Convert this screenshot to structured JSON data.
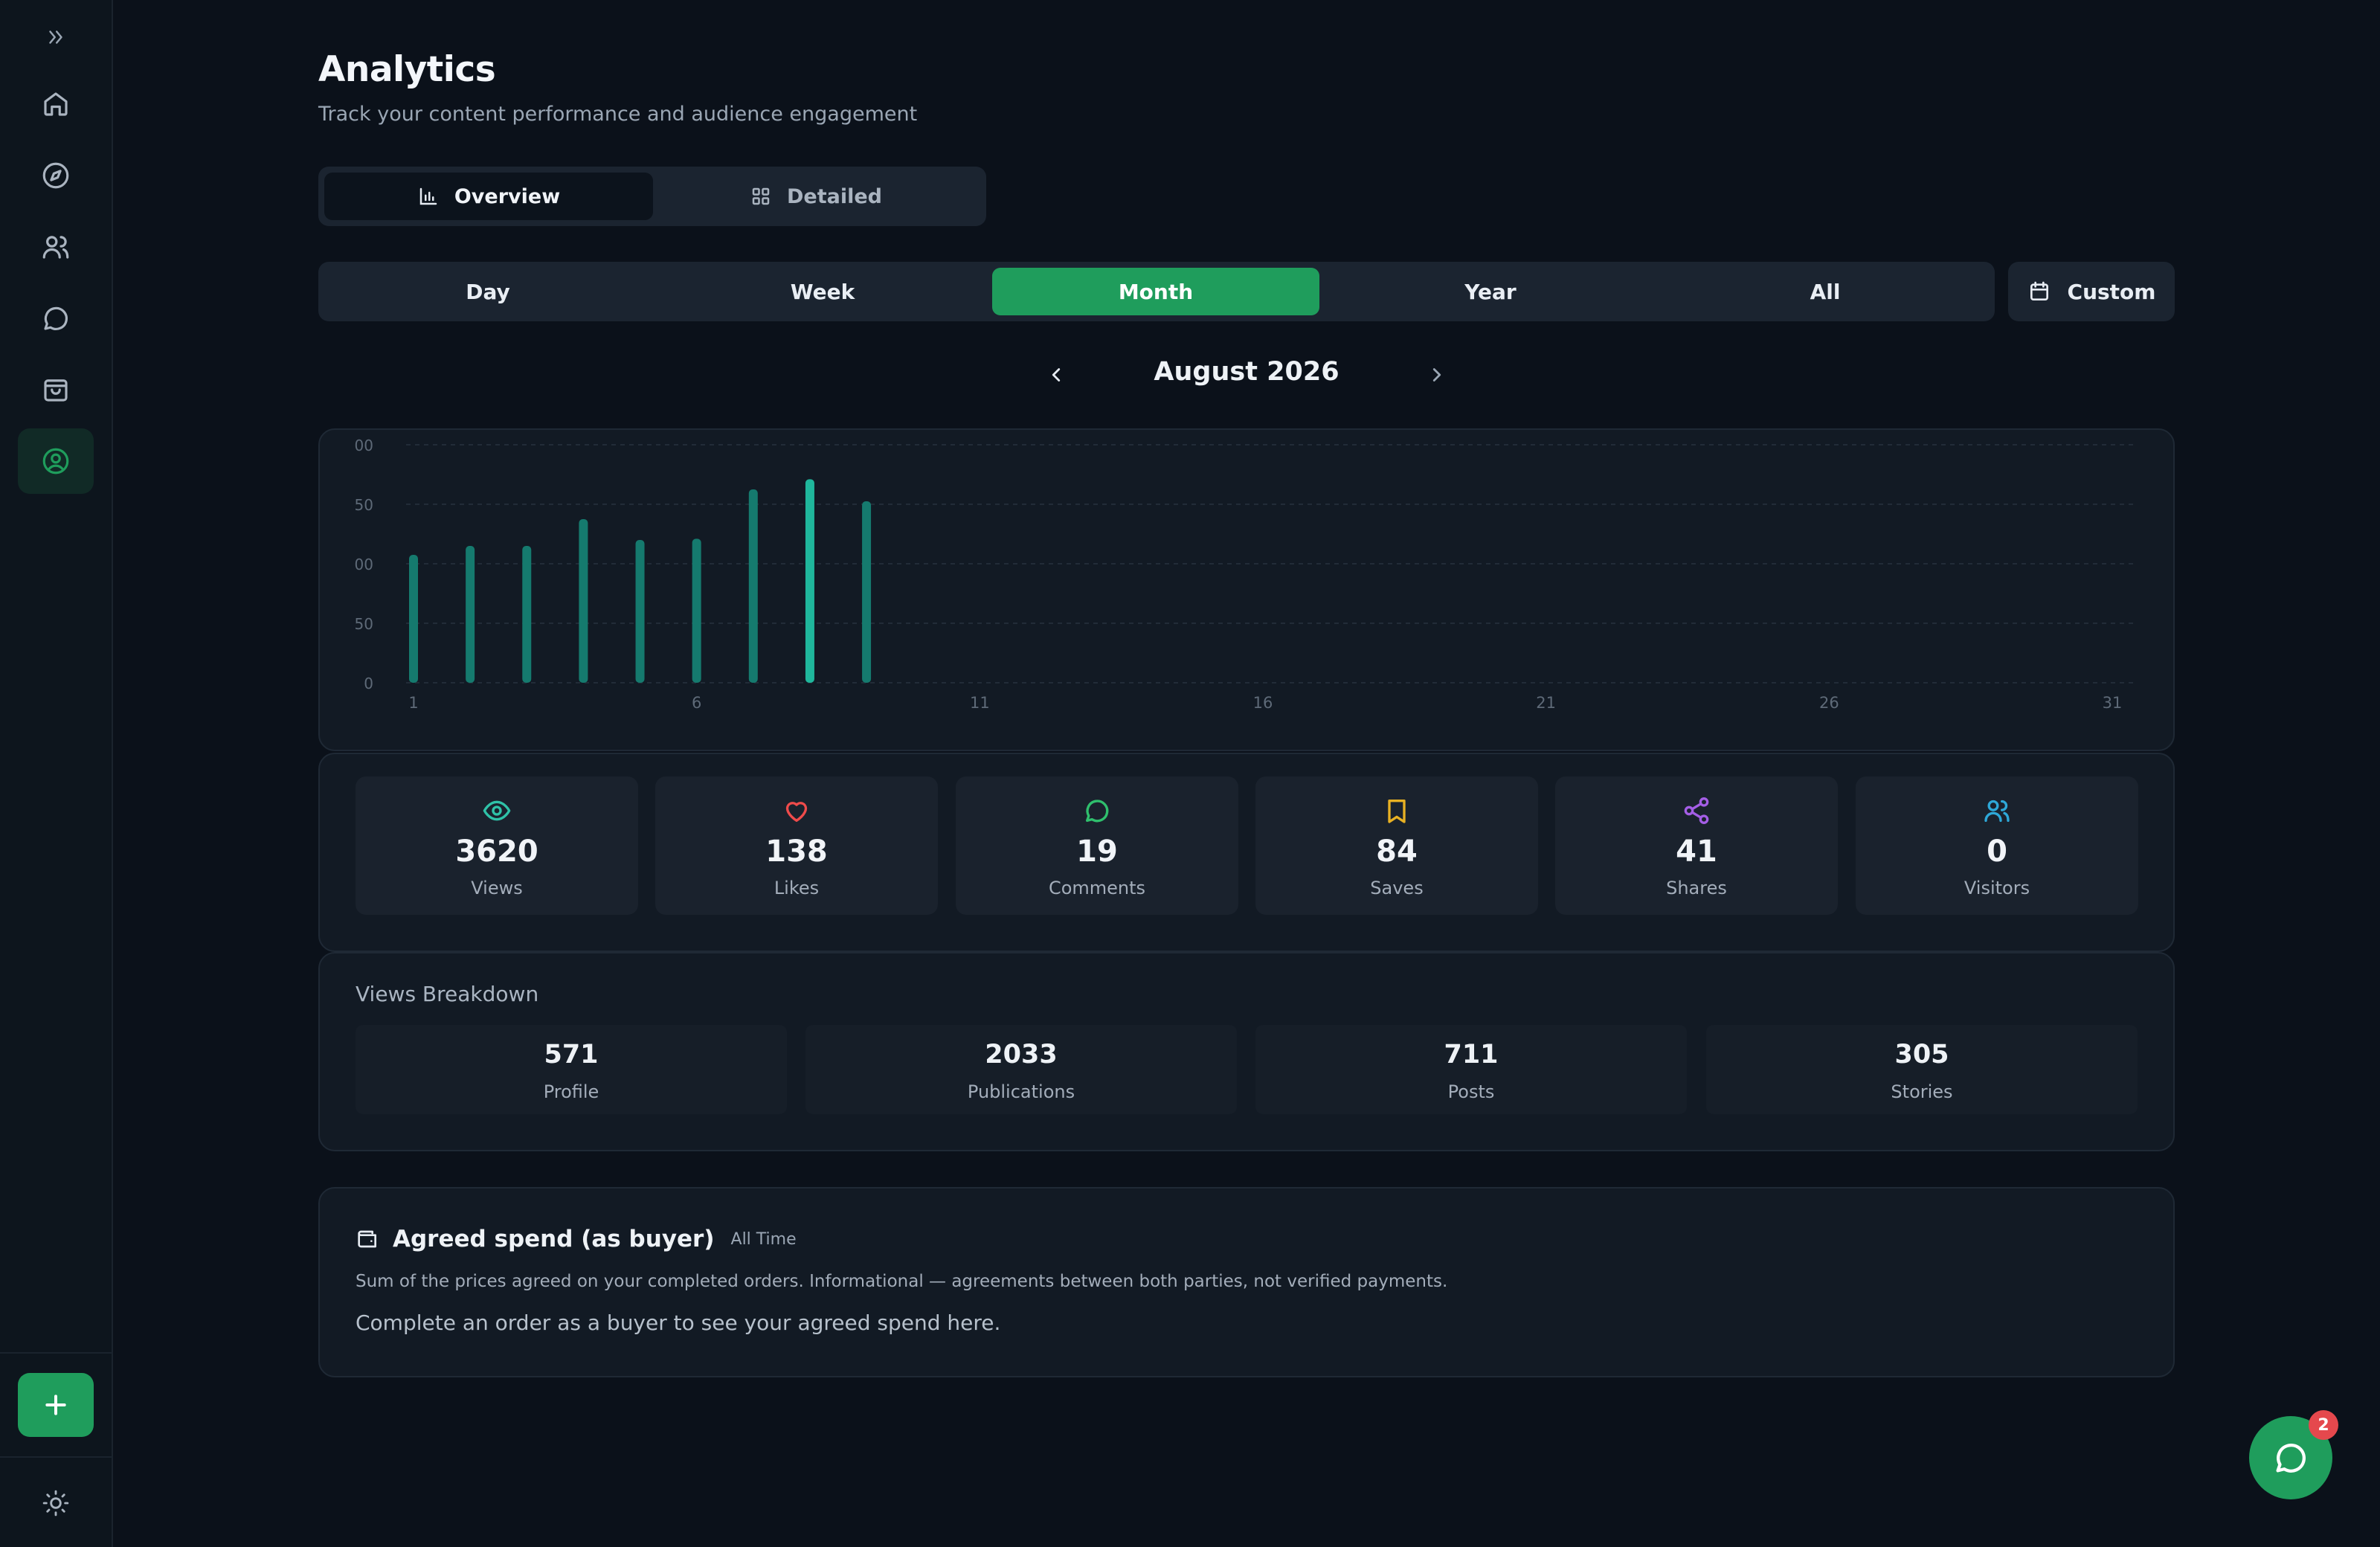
{
  "header": {
    "title": "Analytics",
    "subtitle": "Track your content performance and audience engagement"
  },
  "view_tabs": {
    "overview": "Overview",
    "detailed": "Detailed",
    "active": "Overview"
  },
  "period_tabs": {
    "items": [
      "Day",
      "Week",
      "Month",
      "Year",
      "All"
    ],
    "active": "Month",
    "custom_label": "Custom"
  },
  "month_nav": {
    "label": "August 2026"
  },
  "chart_data": {
    "type": "bar",
    "x": [
      1,
      2,
      3,
      4,
      5,
      6,
      7,
      8,
      9,
      10,
      11,
      12,
      13,
      14,
      15,
      16,
      17,
      18,
      19,
      20,
      21,
      22,
      23,
      24,
      25,
      26,
      27,
      28,
      29,
      30,
      31
    ],
    "values": [
      215,
      230,
      230,
      275,
      240,
      242,
      325,
      342,
      305,
      null,
      null,
      null,
      null,
      null,
      null,
      null,
      null,
      null,
      null,
      null,
      null,
      null,
      null,
      null,
      null,
      null,
      null,
      null,
      null,
      null,
      null
    ],
    "ytick_labels": [
      "0",
      "50",
      "00",
      "50",
      "00"
    ],
    "ylim": [
      0,
      400
    ],
    "xtick_labels": [
      "1",
      "6",
      "11",
      "16",
      "21",
      "26",
      "31"
    ],
    "grid": true,
    "bar_color": "#157a6e",
    "highlight_color": "#1fb79c",
    "highlight_index": 7
  },
  "stats": [
    {
      "value": "3620",
      "label": "Views",
      "icon": "eye-icon",
      "color": "#2fc2a8"
    },
    {
      "value": "138",
      "label": "Likes",
      "icon": "heart-icon",
      "color": "#ef4b4b"
    },
    {
      "value": "19",
      "label": "Comments",
      "icon": "comment-icon",
      "color": "#2fbf6d"
    },
    {
      "value": "84",
      "label": "Saves",
      "icon": "bookmark-icon",
      "color": "#e8b123"
    },
    {
      "value": "41",
      "label": "Shares",
      "icon": "share-icon",
      "color": "#a45ee6"
    },
    {
      "value": "0",
      "label": "Visitors",
      "icon": "users-icon",
      "color": "#2ea8d8"
    }
  ],
  "breakdown": {
    "title": "Views Breakdown",
    "items": [
      {
        "value": "571",
        "label": "Profile"
      },
      {
        "value": "2033",
        "label": "Publications"
      },
      {
        "value": "711",
        "label": "Posts"
      },
      {
        "value": "305",
        "label": "Stories"
      }
    ]
  },
  "spend": {
    "title": "Agreed spend (as buyer)",
    "badge": "All Time",
    "description": "Sum of the prices agreed on your completed orders. Informational — agreements between both parties, not verified payments.",
    "empty": "Complete an order as a buyer to see your agreed spend here."
  },
  "chat": {
    "badge": "2"
  },
  "colors": {
    "accent": "#1f9d5c",
    "background": "#0b111a",
    "card": "#121a24"
  }
}
